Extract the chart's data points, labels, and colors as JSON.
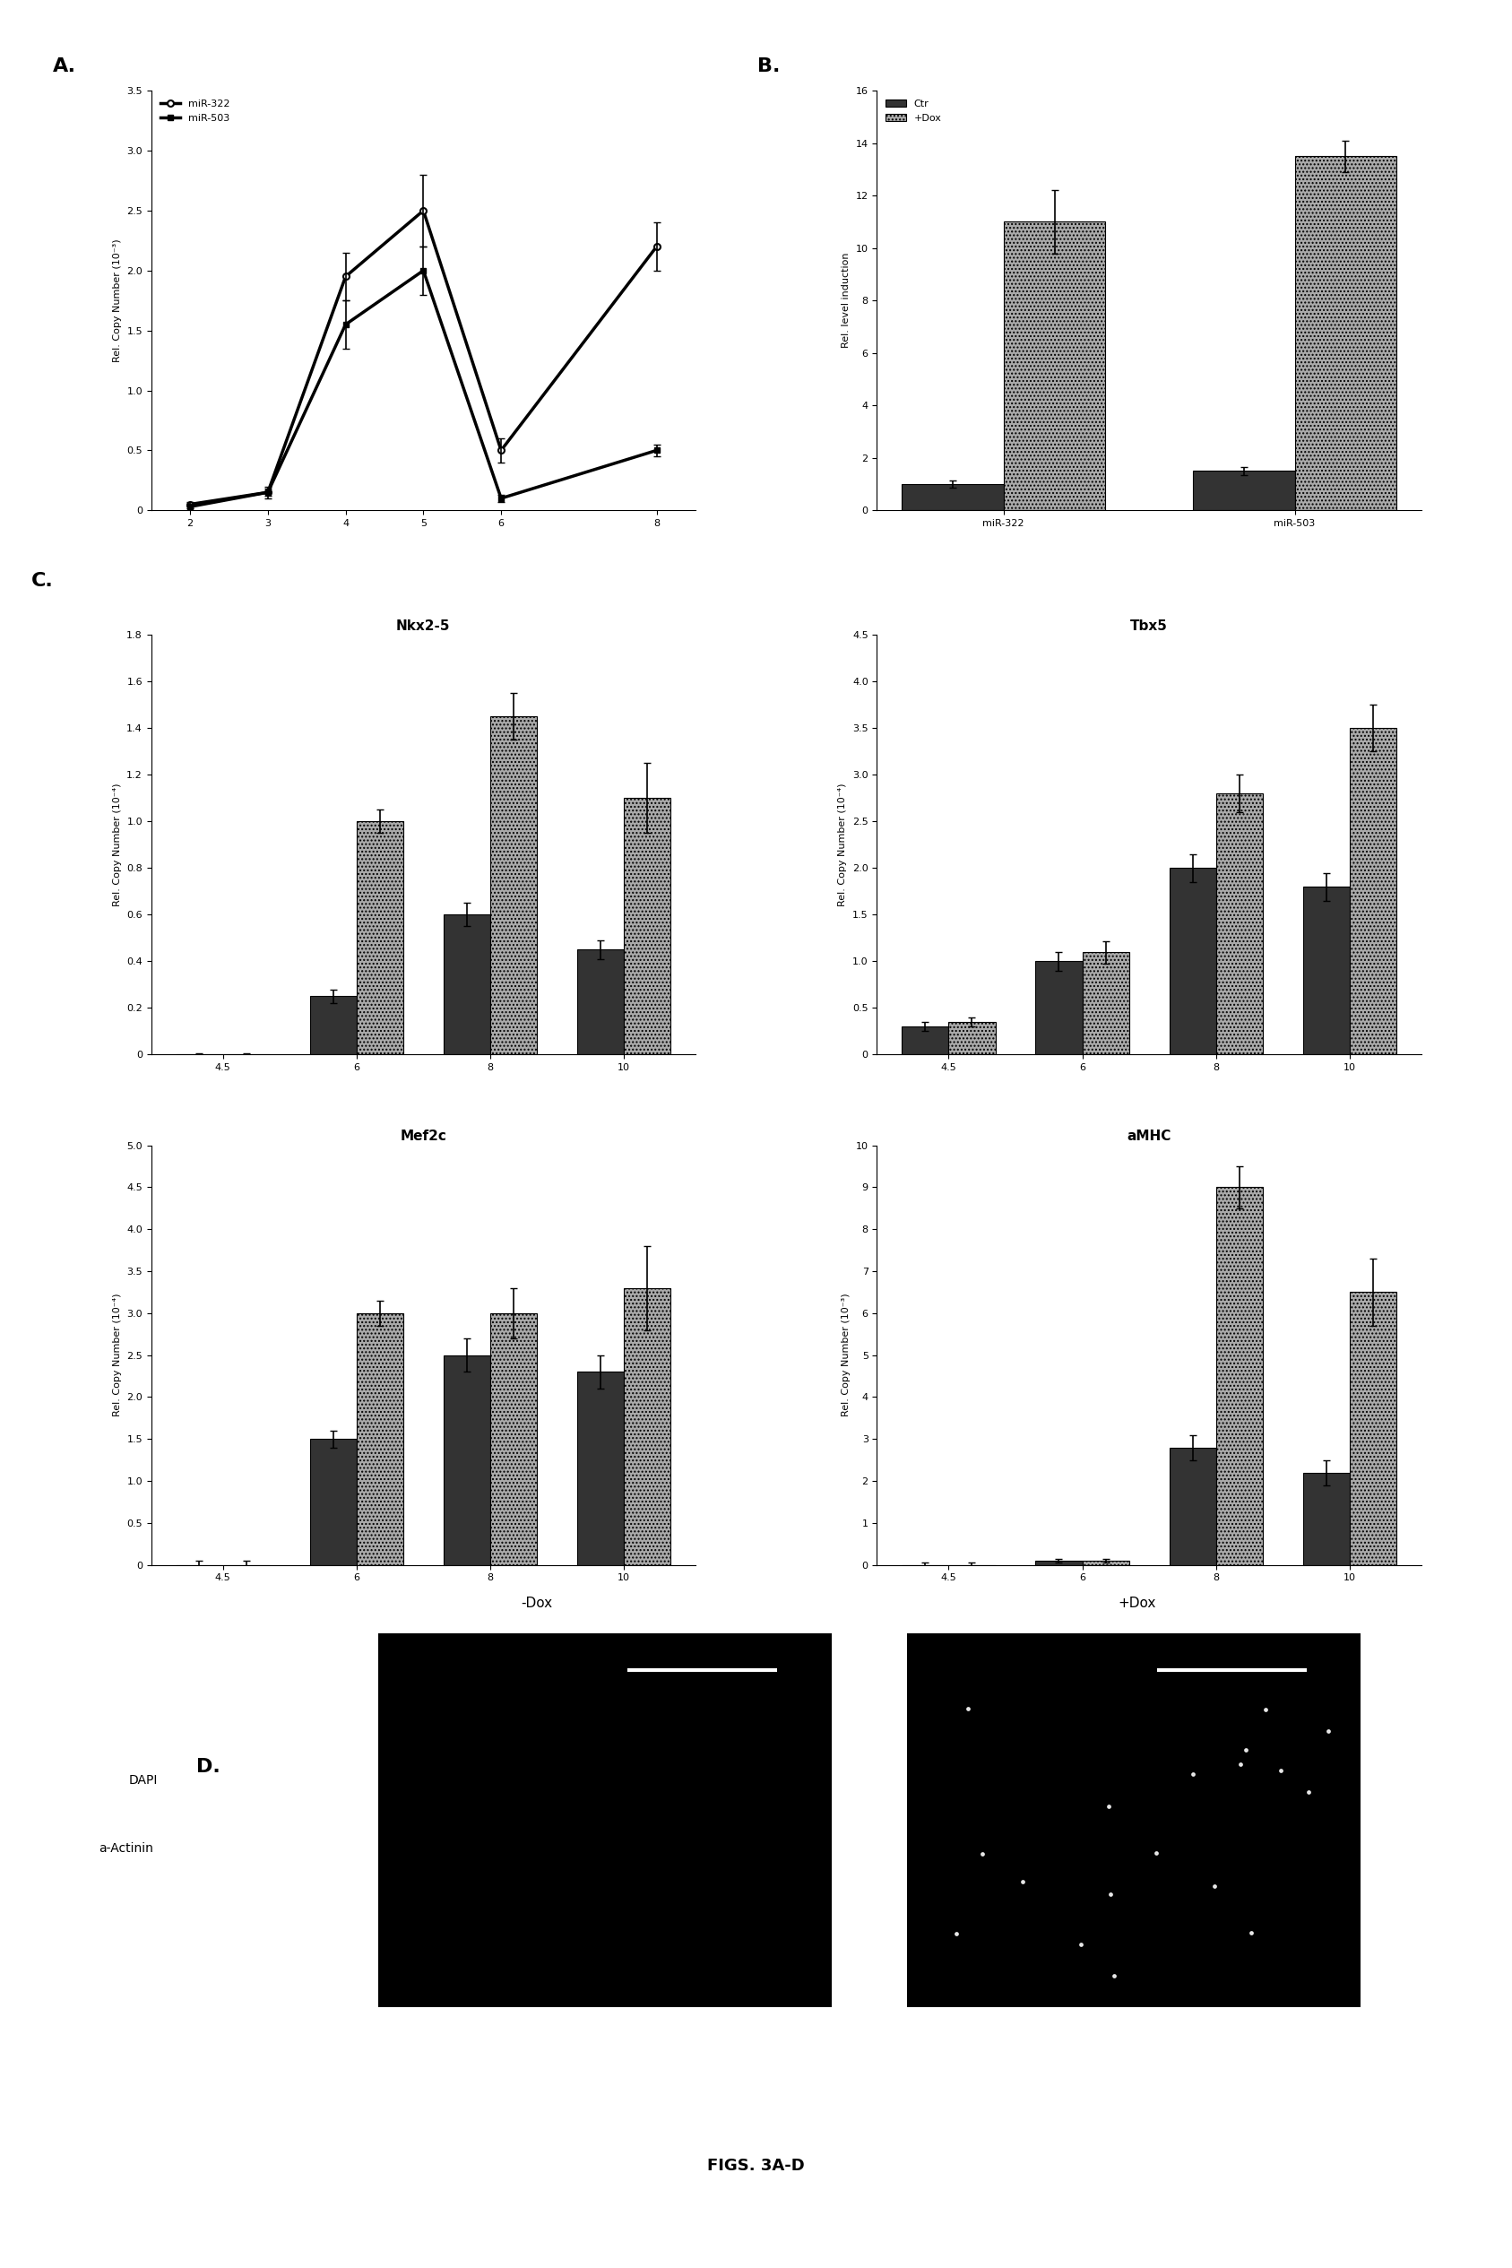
{
  "panel_A": {
    "label": "A.",
    "ylabel": "Rel. Copy Number (10⁻³)",
    "ylim": [
      0,
      3.5
    ],
    "yticks": [
      0,
      0.5,
      1.0,
      1.5,
      2.0,
      2.5,
      3.0,
      3.5
    ],
    "yticklabels": [
      "0",
      "0.5",
      "1.0",
      "1.5",
      "2.0",
      "2.5",
      "3.0",
      "3.5"
    ],
    "xlim": [
      1.5,
      8.5
    ],
    "xticks": [
      2,
      3,
      4,
      5,
      6,
      8
    ],
    "miR322_x": [
      2,
      3,
      4,
      5,
      6,
      8
    ],
    "miR322_y": [
      0.05,
      0.15,
      1.95,
      2.5,
      0.5,
      2.2
    ],
    "miR322_err": [
      0.02,
      0.05,
      0.2,
      0.3,
      0.1,
      0.2
    ],
    "miR503_x": [
      2,
      3,
      4,
      5,
      6,
      8
    ],
    "miR503_y": [
      0.03,
      0.15,
      1.55,
      2.0,
      0.1,
      0.5
    ],
    "miR503_err": [
      0.01,
      0.03,
      0.2,
      0.2,
      0.03,
      0.05
    ],
    "legend_miR322": "miR-322",
    "legend_miR503": "miR-503"
  },
  "panel_B": {
    "label": "B.",
    "ylabel": "Rel. level induction",
    "ylim": [
      0,
      16
    ],
    "yticks": [
      0,
      2,
      4,
      6,
      8,
      10,
      12,
      14,
      16
    ],
    "categories": [
      "miR-322",
      "miR-503"
    ],
    "ctr_values": [
      1.0,
      1.5
    ],
    "ctr_err": [
      0.15,
      0.15
    ],
    "dox_values": [
      11.0,
      13.5
    ],
    "dox_err": [
      1.2,
      0.6
    ],
    "legend_ctr": "Ctr",
    "legend_dox": "+Dox"
  },
  "panel_C_Nkx25": {
    "title": "Nkx2-5",
    "ylabel": "Rel. Copy Number (10⁻⁴)",
    "ylim": [
      0,
      1.8
    ],
    "yticks": [
      0,
      0.2,
      0.4,
      0.6,
      0.8,
      1.0,
      1.2,
      1.4,
      1.6,
      1.8
    ],
    "yticklabels": [
      "0",
      "0.2",
      "0.4",
      "0.6",
      "0.8",
      "1.0",
      "1.2",
      "1.4",
      "1.6",
      "1.8"
    ],
    "xticks": [
      4.5,
      6,
      8,
      10
    ],
    "ctr_values": [
      0.0,
      0.25,
      0.6,
      0.45
    ],
    "ctr_err": [
      0.005,
      0.03,
      0.05,
      0.04
    ],
    "dox_values": [
      0.0,
      1.0,
      1.45,
      1.1
    ],
    "dox_err": [
      0.005,
      0.05,
      0.1,
      0.15
    ]
  },
  "panel_C_Tbx5": {
    "title": "Tbx5",
    "ylabel": "Rel. Copy Number (10⁻⁴)",
    "ylim": [
      0,
      4.5
    ],
    "yticks": [
      0,
      0.5,
      1.0,
      1.5,
      2.0,
      2.5,
      3.0,
      3.5,
      4.0,
      4.5
    ],
    "yticklabels": [
      "0",
      "0.5",
      "1.0",
      "1.5",
      "2.0",
      "2.5",
      "3.0",
      "3.5",
      "4.0",
      "4.5"
    ],
    "xticks": [
      4.5,
      6,
      8,
      10
    ],
    "ctr_values": [
      0.3,
      1.0,
      2.0,
      1.8
    ],
    "ctr_err": [
      0.05,
      0.1,
      0.15,
      0.15
    ],
    "dox_values": [
      0.35,
      1.1,
      2.8,
      3.5
    ],
    "dox_err": [
      0.05,
      0.12,
      0.2,
      0.25
    ]
  },
  "panel_C_Mef2c": {
    "title": "Mef2c",
    "ylabel": "Rel. Copy Number (10⁻⁴)",
    "ylim": [
      0,
      50
    ],
    "yticks": [
      0,
      5,
      10,
      15,
      20,
      25,
      30,
      35,
      40,
      45,
      50
    ],
    "yticklabels": [
      "0",
      "0.5",
      "1.0",
      "1.5",
      "2.0",
      "2.5",
      "3.0",
      "3.5",
      "4.0",
      "4.5",
      "5.0"
    ],
    "xticks": [
      4.5,
      6,
      8,
      10
    ],
    "ctr_values": [
      0.0,
      15,
      25,
      23
    ],
    "ctr_err": [
      0.5,
      1.0,
      2.0,
      2.0
    ],
    "dox_values": [
      0.0,
      30,
      30,
      33
    ],
    "dox_err": [
      0.5,
      1.5,
      3.0,
      5.0
    ]
  },
  "panel_C_aMHC": {
    "title": "aMHC",
    "ylabel": "Rel. Copy Number (10⁻³)",
    "ylim": [
      0,
      10
    ],
    "yticks": [
      0,
      1,
      2,
      3,
      4,
      5,
      6,
      7,
      8,
      9,
      10
    ],
    "yticklabels": [
      "0",
      "1",
      "2",
      "3",
      "4",
      "5",
      "6",
      "7",
      "8",
      "9",
      "10"
    ],
    "xticks": [
      4.5,
      6,
      8,
      10
    ],
    "ctr_values": [
      0.0,
      0.1,
      2.8,
      2.2
    ],
    "ctr_err": [
      0.05,
      0.05,
      0.3,
      0.3
    ],
    "dox_values": [
      0.0,
      0.1,
      9.0,
      6.5
    ],
    "dox_err": [
      0.05,
      0.05,
      0.5,
      0.8
    ]
  },
  "panel_C_label": "C.",
  "panel_D_label": "D.",
  "dox_hatch": "....",
  "bar_width": 0.35,
  "ctr_color": "#333333",
  "dox_color": "#aaaaaa",
  "figure_label": "FIGS. 3A-D",
  "background_color": "#ffffff"
}
